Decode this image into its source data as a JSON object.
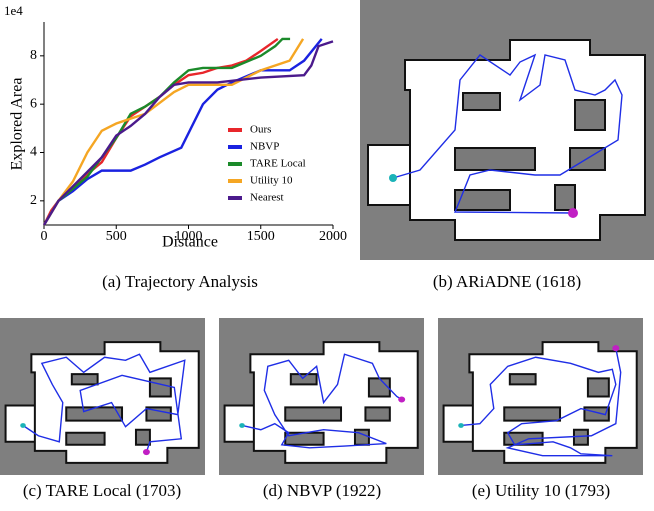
{
  "chart_data": {
    "type": "line",
    "y_offset_label": "1e4",
    "xlabel": "Distance",
    "ylabel": "Explored Area",
    "xlim": [
      0,
      2000
    ],
    "ylim": [
      1,
      9.4
    ],
    "xticks": [
      0,
      500,
      1000,
      1500,
      2000
    ],
    "yticks": [
      2,
      4,
      6,
      8
    ],
    "grid": false,
    "legend": "lower right",
    "series": [
      {
        "name": "Ours",
        "color": "#e8262b",
        "x": [
          0,
          50,
          100,
          200,
          300,
          400,
          500,
          600,
          700,
          800,
          900,
          1000,
          1100,
          1200,
          1300,
          1400,
          1500,
          1618
        ],
        "values": [
          1.0,
          1.6,
          2.0,
          2.5,
          3.1,
          3.6,
          4.6,
          5.5,
          5.9,
          6.3,
          6.8,
          7.2,
          7.3,
          7.5,
          7.6,
          7.8,
          8.2,
          8.7
        ]
      },
      {
        "name": "NBVP",
        "color": "#1a22e0",
        "x": [
          0,
          100,
          200,
          300,
          400,
          600,
          700,
          800,
          950,
          1000,
          1100,
          1200,
          1300,
          1500,
          1700,
          1800,
          1922
        ],
        "values": [
          1.0,
          2.0,
          2.4,
          2.9,
          3.25,
          3.25,
          3.5,
          3.8,
          4.2,
          4.8,
          6.0,
          6.6,
          6.9,
          7.4,
          7.4,
          7.8,
          8.7
        ]
      },
      {
        "name": "TARE Local",
        "color": "#1b8a2a",
        "x": [
          0,
          100,
          300,
          500,
          600,
          700,
          800,
          900,
          1000,
          1100,
          1300,
          1500,
          1600,
          1650,
          1703
        ],
        "values": [
          1.0,
          2.0,
          3.0,
          4.6,
          5.6,
          5.9,
          6.3,
          6.9,
          7.4,
          7.5,
          7.5,
          8.0,
          8.4,
          8.7,
          8.7
        ]
      },
      {
        "name": "Utility 10",
        "color": "#f5a623",
        "x": [
          0,
          100,
          200,
          300,
          400,
          500,
          600,
          700,
          900,
          1000,
          1300,
          1500,
          1700,
          1793
        ],
        "values": [
          1.0,
          2.0,
          2.8,
          4.0,
          4.9,
          5.2,
          5.4,
          5.6,
          6.5,
          6.8,
          6.8,
          7.4,
          7.8,
          8.7
        ]
      },
      {
        "name": "Nearest",
        "color": "#4b1a8c",
        "x": [
          0,
          100,
          200,
          300,
          400,
          500,
          600,
          700,
          800,
          900,
          1000,
          1200,
          1500,
          1800,
          1850,
          1900,
          1950,
          2000
        ],
        "values": [
          1.0,
          2.0,
          2.6,
          3.2,
          3.8,
          4.7,
          5.1,
          5.6,
          6.3,
          6.8,
          6.9,
          6.9,
          7.1,
          7.2,
          7.6,
          8.4,
          8.5,
          8.6
        ]
      }
    ]
  },
  "captions": [
    "(a) Trajectory Analysis",
    "(b) ARiADNE (1618)",
    "(c) TARE Local (1703)",
    "(d) NBVP (1922)",
    "(e) Utility 10 (1793)"
  ]
}
